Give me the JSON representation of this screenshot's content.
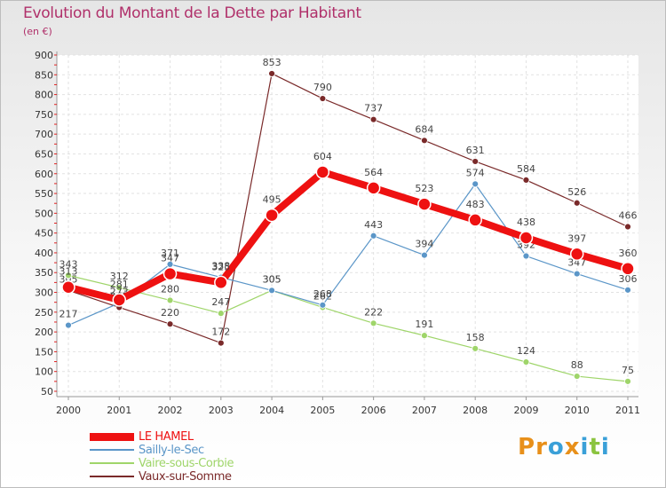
{
  "title": "Evolution du Montant de la Dette par Habitant",
  "subtitle": "(en €)",
  "chart_data": {
    "type": "line",
    "categories": [
      "2000",
      "2001",
      "2002",
      "2003",
      "2004",
      "2005",
      "2006",
      "2007",
      "2008",
      "2009",
      "2010",
      "2011"
    ],
    "y_ticks": [
      50,
      100,
      150,
      200,
      250,
      300,
      350,
      400,
      450,
      500,
      550,
      600,
      650,
      700,
      750,
      800,
      850,
      900
    ],
    "ylim": [
      50,
      900
    ],
    "grid": true,
    "legend_placement": "bottom-left",
    "series": [
      {
        "name": "Vaux-sur-Somme",
        "color": "#7a2a2a",
        "width": 1.2,
        "marker": 3.5,
        "label_dy": -9,
        "values": [
          305,
          262,
          220,
          172,
          853,
          790,
          737,
          684,
          631,
          584,
          526,
          466
        ]
      },
      {
        "name": "Vaire-sous-Corbie",
        "color": "#9fd56a",
        "width": 1.2,
        "marker": 3.5,
        "label_dy": -9,
        "values": [
          343,
          312,
          280,
          247,
          305,
          262,
          222,
          191,
          158,
          124,
          88,
          75
        ]
      },
      {
        "name": "Sailly-le-Sec",
        "color": "#5b96c8",
        "width": 1.2,
        "marker": 3.5,
        "label_dy": -9,
        "values": [
          217,
          273,
          371,
          338,
          305,
          268,
          443,
          394,
          574,
          392,
          347,
          306
        ]
      },
      {
        "name": "LE HAMEL",
        "color": "#ee1111",
        "width": 8,
        "marker": 7,
        "label_dy": -14,
        "values": [
          313,
          281,
          347,
          325,
          495,
          604,
          564,
          523,
          483,
          438,
          397,
          360
        ]
      }
    ],
    "legend_order": [
      "LE HAMEL",
      "Sailly-le-Sec",
      "Vaire-sous-Corbie",
      "Vaux-sur-Somme"
    ]
  },
  "logo": {
    "letters": [
      "P",
      "r",
      "o",
      "x",
      "i",
      "t",
      "i"
    ],
    "colors": [
      "#e8901a",
      "#e8901a",
      "#3aa0d8",
      "#e8901a",
      "#3aa0d8",
      "#8bc43f",
      "#3aa0d8"
    ]
  }
}
